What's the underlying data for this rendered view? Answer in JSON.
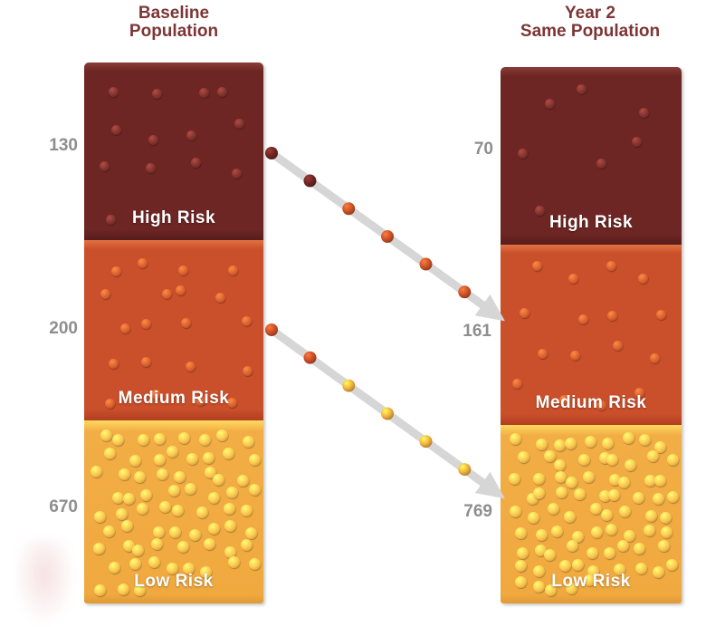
{
  "chart_data": {
    "type": "bar",
    "subtype": "stacked-risk-columns-with-migration-arrows",
    "legend": "none",
    "columns": [
      {
        "title": "Baseline Population",
        "title_lines": [
          "Baseline",
          "Population"
        ],
        "segments": [
          {
            "label": "High Risk",
            "value": 130,
            "color": "#6d2624",
            "dot_color": "#7e332e",
            "dots": 13
          },
          {
            "label": "Medium Risk",
            "value": 200,
            "color": "#ca4f2b",
            "dot_color": "#d9602f",
            "dots": 20
          },
          {
            "label": "Low Risk",
            "value": 670,
            "color": "#f2ad45",
            "dot_color": "#fbc44f",
            "dots": 67
          }
        ]
      },
      {
        "title": "Year 2 Same Population",
        "title_lines": [
          "Year 2",
          "Same Population"
        ],
        "segments": [
          {
            "label": "High Risk",
            "value": 70,
            "color": "#6d2624",
            "dot_color": "#7e332e",
            "dots": 7
          },
          {
            "label": "Medium Risk",
            "value": 161,
            "color": "#ca4f2b",
            "dot_color": "#d9602f",
            "dots": 16
          },
          {
            "label": "Low Risk",
            "value": 769,
            "color": "#f2ad45",
            "dot_color": "#fbc44f",
            "dots": 77
          }
        ]
      }
    ],
    "flows": [
      {
        "from": "Baseline High Risk",
        "to": "Year 2 Medium Risk",
        "dot_colors": [
          "#6d2624",
          "#6d2624",
          "#cc5328",
          "#cc5328",
          "#cc5328",
          "#cc5328"
        ]
      },
      {
        "from": "Baseline Medium Risk",
        "to": "Year 2 Low Risk",
        "dot_colors": [
          "#cc4f28",
          "#cc4f28",
          "#f3b33e",
          "#f3b33e",
          "#f3b33e",
          "#f3b33e"
        ]
      }
    ],
    "colors": {
      "arrow": "#d6d6d6",
      "value_label": "#8e8e8e",
      "title_text": "#7d3535",
      "segment_label_text": "#ffffff"
    }
  }
}
